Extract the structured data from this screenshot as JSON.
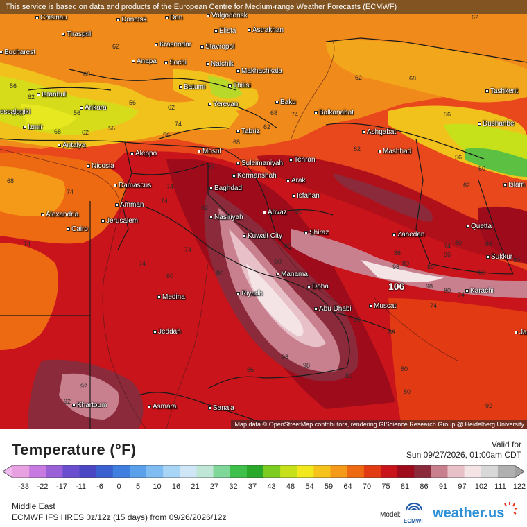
{
  "banner": "This service is based on data and products of the European Centre for Medium-range Weather Forecasts (ECMWF)",
  "attribution": "Map data © OpenStreetMap contributors, rendering GIScience Research Group @ Heidelberg University",
  "title": "Temperature (°F)",
  "valid_label": "Valid for",
  "valid_time": "Sun 09/27/2026, 01:00am CDT",
  "colorbar_ticks": [
    "-33",
    "-22",
    "-17",
    "-11",
    "-6",
    "0",
    "5",
    "10",
    "16",
    "21",
    "27",
    "32",
    "37",
    "43",
    "48",
    "54",
    "59",
    "64",
    "70",
    "75",
    "81",
    "86",
    "91",
    "97",
    "102",
    "111",
    "122"
  ],
  "colorbar_colors": [
    "#e7a0e0",
    "#c77be0",
    "#9a60d8",
    "#6b4ed0",
    "#4a47c4",
    "#3a5fd0",
    "#3f7fe0",
    "#5aa0ea",
    "#7fbcf2",
    "#a8d4f6",
    "#cfe6f6",
    "#bfe6d6",
    "#7fd89a",
    "#3fc04a",
    "#2aa82a",
    "#7ccc22",
    "#c6e01a",
    "#f2e81e",
    "#f6c21c",
    "#f59a18",
    "#ee6a12",
    "#e23a12",
    "#c8141a",
    "#9e0c1c",
    "#8a2a3a",
    "#c8808f",
    "#e8c0c8",
    "#f4e4e6",
    "#d8d8d8",
    "#b0b0b0"
  ],
  "region": "Middle East",
  "model_line": "ECMWF IFS HRES 0z/12z (15 days) from 09/26/2026/12z",
  "model_label": "Model:",
  "ecmwf_label": "ECMWF",
  "brand": "weather.us",
  "cities": [
    {
      "name": "Chisinau"
    },
    {
      "name": "Donetsk"
    },
    {
      "name": "Don"
    },
    {
      "name": "Volgodonsk"
    },
    {
      "name": "Tiraspol"
    },
    {
      "name": "Elista"
    },
    {
      "name": "Astrakhan"
    },
    {
      "name": "Bucharest"
    },
    {
      "name": "Krasnodar"
    },
    {
      "name": "Stavropol"
    },
    {
      "name": "Anapa"
    },
    {
      "name": "Sochi"
    },
    {
      "name": "Nalchik"
    },
    {
      "name": "Makhachkala"
    },
    {
      "name": "Batumi"
    },
    {
      "name": "Tbilisi"
    },
    {
      "name": "Istanbul"
    },
    {
      "name": "Baku"
    },
    {
      "name": "Tashkent"
    },
    {
      "name": "Yerevan"
    },
    {
      "name": "Ankara"
    },
    {
      "name": "Balkanabat"
    },
    {
      "name": "essaloniki"
    },
    {
      "name": "Izmir"
    },
    {
      "name": "Tabriz"
    },
    {
      "name": "Ashgabat"
    },
    {
      "name": "Dushanbe"
    },
    {
      "name": "Antalya"
    },
    {
      "name": "Aleppo"
    },
    {
      "name": "Mosul"
    },
    {
      "name": "Suleimaniyah"
    },
    {
      "name": "Tehran"
    },
    {
      "name": "Mashhad"
    },
    {
      "name": "Nicosia"
    },
    {
      "name": "Kermanshah"
    },
    {
      "name": "Arak"
    },
    {
      "name": "Islam"
    },
    {
      "name": "Damascus"
    },
    {
      "name": "Baghdad"
    },
    {
      "name": "Isfahan"
    },
    {
      "name": "Amman"
    },
    {
      "name": "Alexandria"
    },
    {
      "name": "Nasiriyah"
    },
    {
      "name": "Ahvaz"
    },
    {
      "name": "Quetta"
    },
    {
      "name": "Jerusalem"
    },
    {
      "name": "Cairo"
    },
    {
      "name": "Kuwait City"
    },
    {
      "name": "Shiraz"
    },
    {
      "name": "Zahedan"
    },
    {
      "name": "Sukkur"
    },
    {
      "name": "Manama"
    },
    {
      "name": "Doha"
    },
    {
      "name": "Riyadh"
    },
    {
      "name": "Medina"
    },
    {
      "name": "Karachi"
    },
    {
      "name": "Abu Dhabi"
    },
    {
      "name": "Muscat"
    },
    {
      "name": "Jeddah"
    },
    {
      "name": "Ja"
    },
    {
      "name": "Khartoum"
    },
    {
      "name": "Asmara"
    },
    {
      "name": "Sana'a"
    }
  ],
  "isotherm_labels": [
    "62",
    "68",
    "56",
    "62",
    "68",
    "62",
    "62",
    "56",
    "56",
    "68",
    "62",
    "56",
    "62",
    "56",
    "74",
    "62",
    "68",
    "62",
    "68",
    "74",
    "62",
    "56",
    "62",
    "56",
    "50",
    "68",
    "74",
    "62",
    "74",
    "62",
    "74",
    "68",
    "62",
    "74",
    "80",
    "74",
    "74",
    "80",
    "86",
    "80",
    "80",
    "74",
    "80",
    "86",
    "80",
    "86",
    "80",
    "98",
    "106",
    "98",
    "80",
    "92",
    "92",
    "98",
    "98",
    "86",
    "80",
    "80",
    "86",
    "74",
    "80",
    "80",
    "80",
    "86",
    "74",
    "92",
    "80"
  ]
}
